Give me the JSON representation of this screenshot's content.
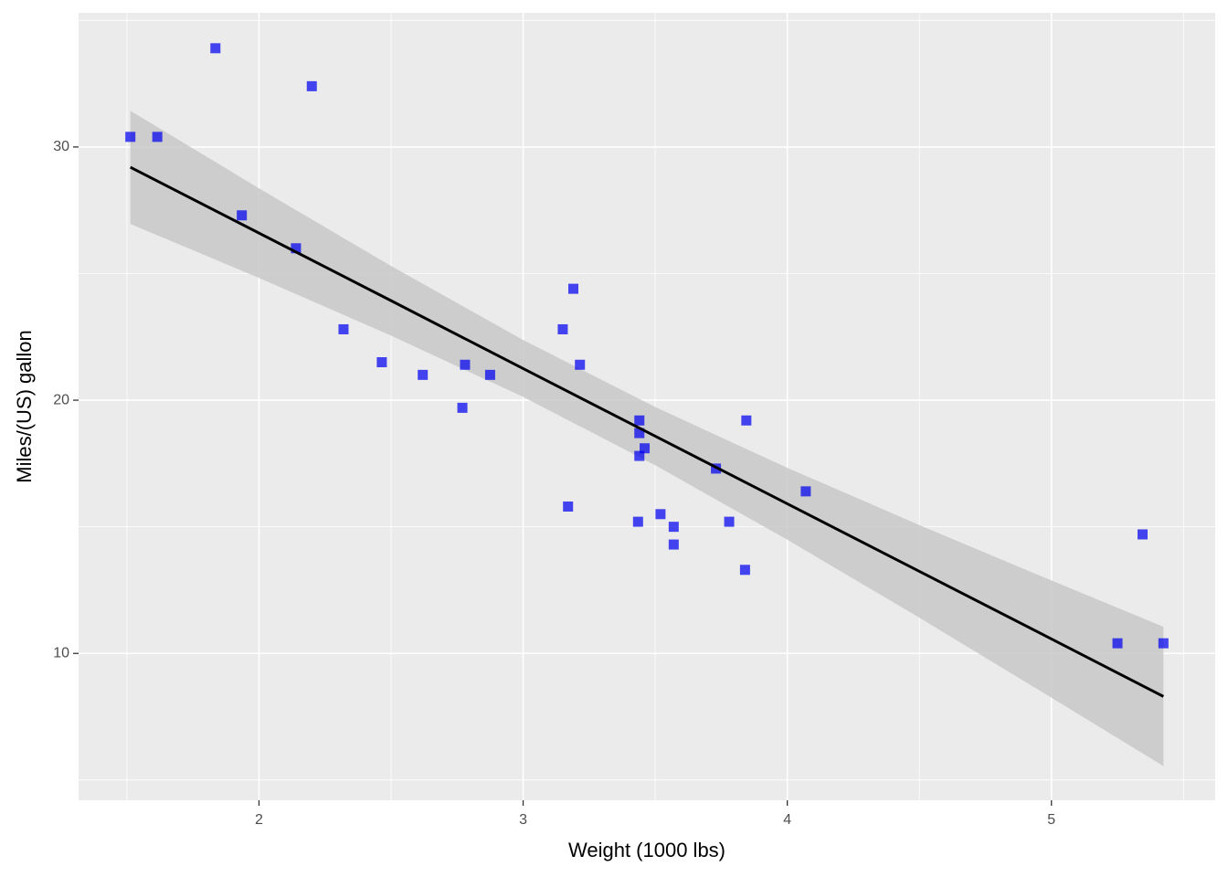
{
  "chart_data": {
    "type": "scatter",
    "x_label": "Weight (1000 lbs)",
    "y_label": "Miles/(US) gallon",
    "x": [
      2.62,
      2.875,
      2.32,
      3.215,
      3.44,
      3.46,
      3.57,
      3.19,
      3.15,
      3.44,
      3.44,
      4.07,
      3.73,
      3.78,
      5.25,
      5.424,
      5.345,
      2.2,
      1.615,
      1.835,
      2.465,
      3.52,
      3.435,
      3.84,
      3.845,
      1.935,
      2.14,
      1.513,
      3.17,
      2.77,
      3.57,
      2.78
    ],
    "values": [
      21.0,
      21.0,
      22.8,
      21.4,
      18.7,
      18.1,
      14.3,
      24.4,
      22.8,
      19.2,
      17.8,
      16.4,
      17.3,
      15.2,
      10.4,
      10.4,
      14.7,
      32.4,
      30.4,
      33.9,
      21.5,
      15.5,
      15.2,
      13.3,
      19.2,
      27.3,
      26.0,
      30.4,
      15.8,
      19.7,
      15.0,
      21.4
    ],
    "color": "#0000ee",
    "fit": {
      "x": [
        1.513,
        2,
        2.5,
        3,
        3.5,
        4,
        4.5,
        5,
        5.424
      ],
      "values": [
        29.2,
        26.6,
        23.93,
        21.25,
        18.58,
        15.91,
        13.24,
        10.57,
        8.3
      ],
      "lower": [
        26.96,
        24.83,
        22.55,
        20.13,
        17.43,
        14.49,
        11.41,
        8.25,
        5.55
      ],
      "upper": [
        31.43,
        28.37,
        25.3,
        22.38,
        19.73,
        17.33,
        15.07,
        12.88,
        11.05
      ],
      "color": "#000000",
      "band_color": "#c8c8c8"
    },
    "xlim": [
      1.317,
      5.62
    ],
    "ylim": [
      4.2,
      35.3
    ],
    "xticks": [
      2,
      3,
      4,
      5
    ],
    "yticks": [
      10,
      20,
      30
    ],
    "xminor": [
      1.5,
      2.5,
      3.5,
      4.5,
      5.5
    ],
    "yminor": [
      5,
      15,
      25,
      35
    ],
    "grid": true
  }
}
